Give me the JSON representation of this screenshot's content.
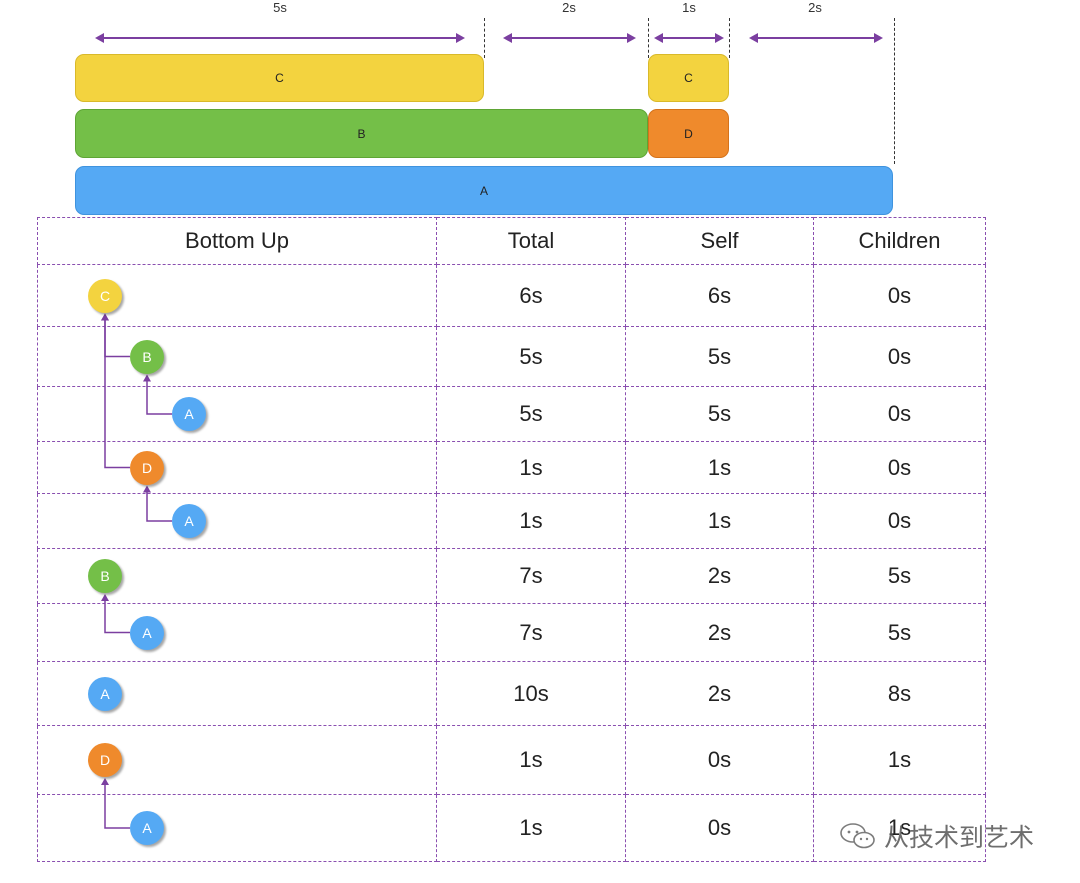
{
  "timeline": {
    "durations": [
      "5s",
      "2s",
      "1s",
      "2s"
    ],
    "bars": {
      "top_c_long": "C",
      "top_c_short": "C",
      "mid_b": "B",
      "mid_d": "D",
      "bottom_a": "A"
    }
  },
  "table": {
    "headers": [
      "Bottom Up",
      "Total",
      "Self",
      "Children"
    ],
    "rows": [
      {
        "node": "C",
        "color": "yellow",
        "level": 0,
        "total": "6s",
        "self": "6s",
        "children": "0s"
      },
      {
        "node": "B",
        "color": "green",
        "level": 1,
        "total": "5s",
        "self": "5s",
        "children": "0s"
      },
      {
        "node": "A",
        "color": "blue",
        "level": 2,
        "total": "5s",
        "self": "5s",
        "children": "0s"
      },
      {
        "node": "D",
        "color": "orange",
        "level": 1,
        "total": "1s",
        "self": "1s",
        "children": "0s"
      },
      {
        "node": "A",
        "color": "blue",
        "level": 2,
        "total": "1s",
        "self": "1s",
        "children": "0s"
      },
      {
        "node": "B",
        "color": "green",
        "level": 0,
        "total": "7s",
        "self": "2s",
        "children": "5s"
      },
      {
        "node": "A",
        "color": "blue",
        "level": 1,
        "total": "7s",
        "self": "2s",
        "children": "5s"
      },
      {
        "node": "A",
        "color": "blue",
        "level": 0,
        "total": "10s",
        "self": "2s",
        "children": "8s"
      },
      {
        "node": "D",
        "color": "orange",
        "level": 0,
        "total": "1s",
        "self": "0s",
        "children": "1s"
      },
      {
        "node": "A",
        "color": "blue",
        "level": 1,
        "total": "1s",
        "self": "0s",
        "children": "1s"
      }
    ]
  },
  "watermark": {
    "text": "从技术到艺术",
    "icon": "wechat-icon"
  },
  "colors": {
    "yellow": "#f3d33f",
    "green": "#74bf48",
    "orange": "#ef8a2c",
    "blue": "#55a9f4",
    "connector": "#7b3fa0"
  }
}
